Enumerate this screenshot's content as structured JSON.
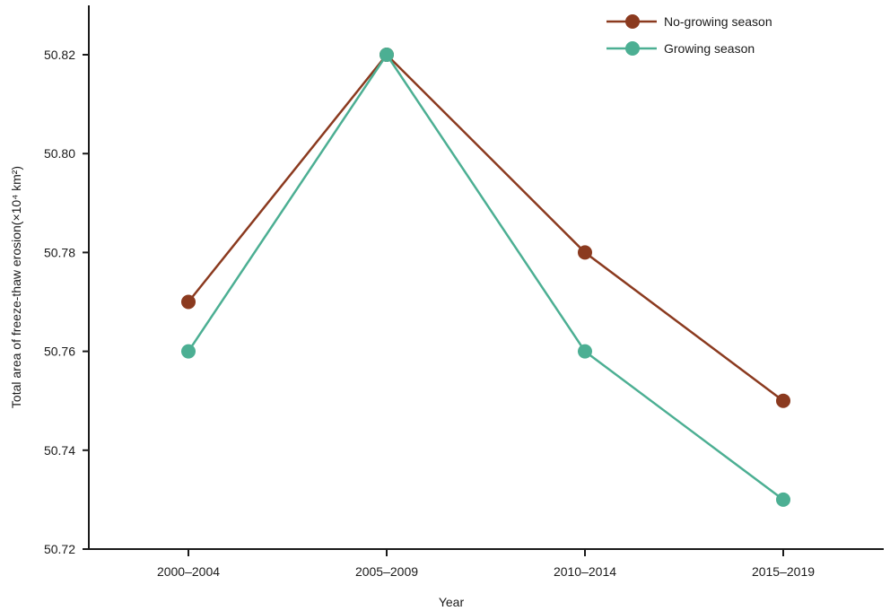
{
  "chart_data": {
    "type": "line",
    "title": "",
    "xlabel": "Year",
    "ylabel": "Total area of freeze-thaw erosion(×10⁴ km²)",
    "categories": [
      "2000–2004",
      "2005–2009",
      "2010–2014",
      "2015–2019"
    ],
    "ylim": [
      50.72,
      50.82
    ],
    "yticks": [
      50.72,
      50.74,
      50.76,
      50.78,
      50.8,
      50.82
    ],
    "ytick_labels": [
      "50.72",
      "50.74",
      "50.76",
      "50.78",
      "50.80",
      "50.82"
    ],
    "grid": false,
    "legend_position": "top-right",
    "series": [
      {
        "name": "No-growing season",
        "color": "#8b3a1f",
        "values": [
          50.77,
          50.82,
          50.78,
          50.75
        ]
      },
      {
        "name": "Growing season",
        "color": "#4caf93",
        "values": [
          50.76,
          50.82,
          50.76,
          50.73
        ]
      }
    ]
  }
}
